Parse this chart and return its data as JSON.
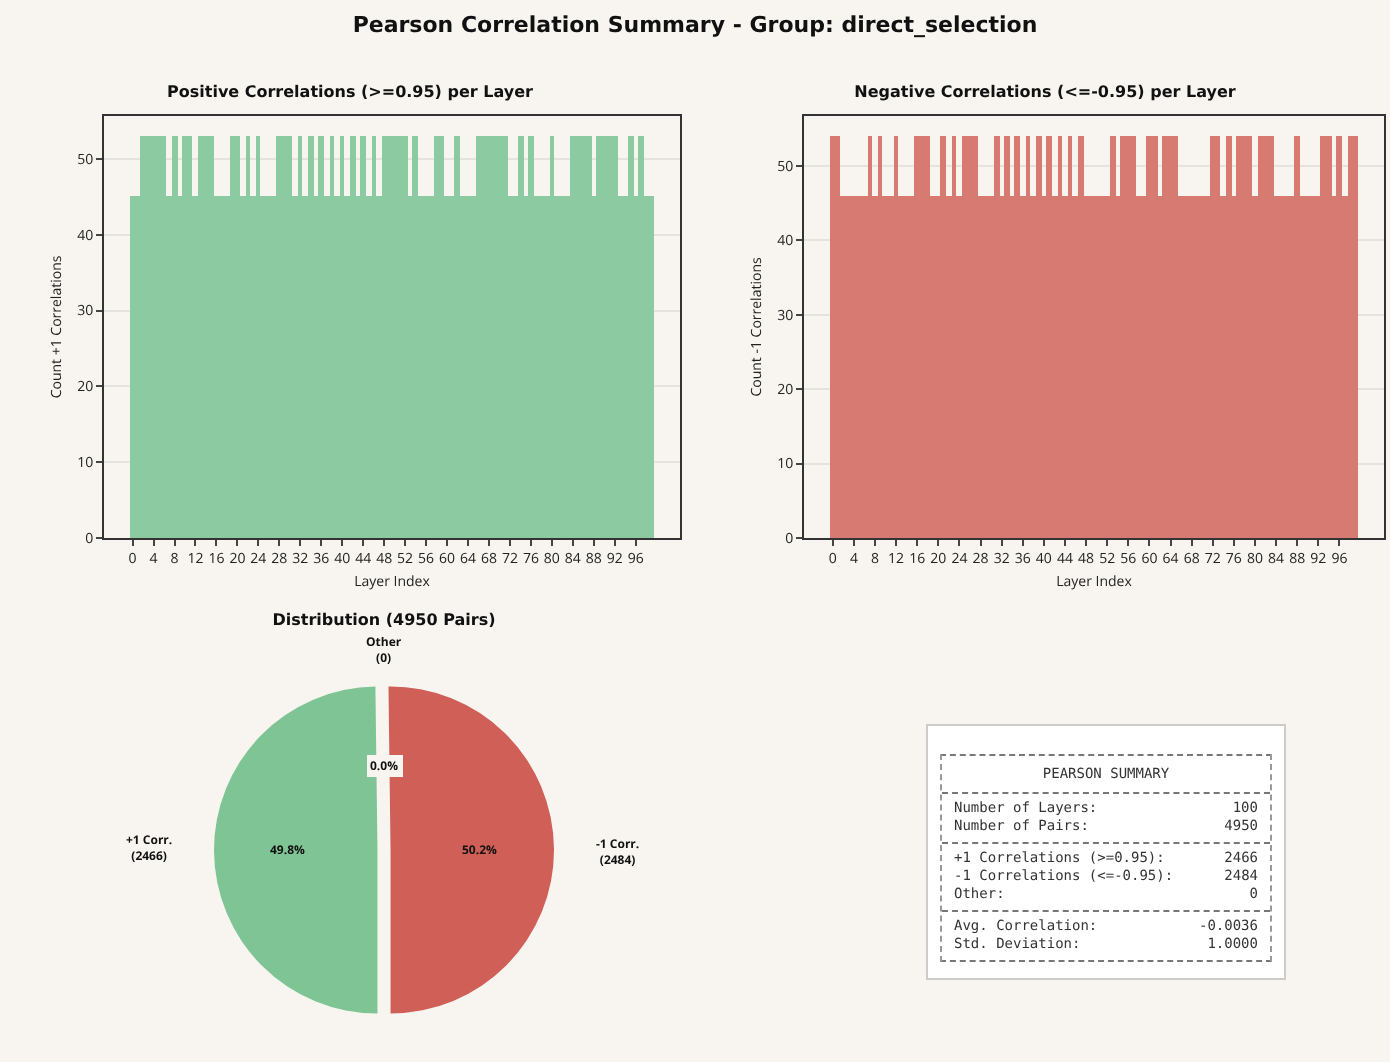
{
  "chart_data": [
    {
      "type": "other",
      "title": "Pearson Correlation Summary - Group: direct_selection"
    },
    {
      "type": "bar",
      "title": "Positive Correlations (>=0.95) per Layer",
      "xlabel": "Layer Index",
      "ylabel": "Count +1 Correlations",
      "x": [
        0,
        1,
        2,
        3,
        4,
        5,
        6,
        7,
        8,
        9,
        10,
        11,
        12,
        13,
        14,
        15,
        16,
        17,
        18,
        19,
        20,
        21,
        22,
        23,
        24,
        25,
        26,
        27,
        28,
        29,
        30,
        31,
        32,
        33,
        34,
        35,
        36,
        37,
        38,
        39,
        40,
        41,
        42,
        43,
        44,
        45,
        46,
        47,
        48,
        49,
        50,
        51,
        52,
        53,
        54,
        55,
        56,
        57,
        58,
        59,
        60,
        61,
        62,
        63,
        64,
        65,
        66,
        67,
        68,
        69,
        70,
        71,
        72,
        73,
        74,
        75,
        76,
        77,
        78,
        79,
        80,
        81,
        82,
        83,
        84,
        85,
        86,
        87,
        88,
        89,
        90,
        91,
        92,
        93,
        94,
        95,
        96,
        97,
        98,
        99
      ],
      "values": [
        45,
        45,
        53,
        53,
        53,
        53,
        53,
        45,
        53,
        45,
        53,
        53,
        45,
        53,
        53,
        53,
        45,
        45,
        45,
        53,
        53,
        45,
        53,
        45,
        53,
        45,
        45,
        45,
        53,
        53,
        53,
        45,
        53,
        45,
        53,
        45,
        53,
        45,
        53,
        45,
        53,
        45,
        53,
        45,
        53,
        45,
        53,
        45,
        53,
        53,
        53,
        53,
        53,
        45,
        53,
        45,
        45,
        45,
        53,
        53,
        45,
        45,
        53,
        45,
        45,
        45,
        53,
        53,
        53,
        53,
        53,
        53,
        45,
        45,
        53,
        45,
        53,
        45,
        45,
        45,
        53,
        45,
        45,
        45,
        53,
        53,
        53,
        53,
        45,
        53,
        53,
        53,
        53,
        45,
        45,
        53,
        45,
        53,
        45,
        45
      ],
      "color": "#8ccba1",
      "xlim": [
        -5.45,
        104.45
      ],
      "ylim": [
        0,
        55.65
      ],
      "xticks": [
        0,
        4,
        8,
        12,
        16,
        20,
        24,
        28,
        32,
        36,
        40,
        44,
        48,
        52,
        56,
        60,
        64,
        68,
        72,
        76,
        80,
        84,
        88,
        92,
        96
      ],
      "yticks": [
        0,
        10,
        20,
        30,
        40,
        50
      ],
      "grid": "y"
    },
    {
      "type": "bar",
      "title": "Negative Correlations (<=-0.95) per Layer",
      "xlabel": "Layer Index",
      "ylabel": "Count -1 Correlations",
      "x": [
        0,
        1,
        2,
        3,
        4,
        5,
        6,
        7,
        8,
        9,
        10,
        11,
        12,
        13,
        14,
        15,
        16,
        17,
        18,
        19,
        20,
        21,
        22,
        23,
        24,
        25,
        26,
        27,
        28,
        29,
        30,
        31,
        32,
        33,
        34,
        35,
        36,
        37,
        38,
        39,
        40,
        41,
        42,
        43,
        44,
        45,
        46,
        47,
        48,
        49,
        50,
        51,
        52,
        53,
        54,
        55,
        56,
        57,
        58,
        59,
        60,
        61,
        62,
        63,
        64,
        65,
        66,
        67,
        68,
        69,
        70,
        71,
        72,
        73,
        74,
        75,
        76,
        77,
        78,
        79,
        80,
        81,
        82,
        83,
        84,
        85,
        86,
        87,
        88,
        89,
        90,
        91,
        92,
        93,
        94,
        95,
        96,
        97,
        98,
        99
      ],
      "values": [
        54,
        54,
        46,
        46,
        46,
        46,
        46,
        54,
        46,
        54,
        46,
        46,
        54,
        46,
        46,
        46,
        54,
        54,
        54,
        46,
        46,
        54,
        46,
        54,
        46,
        54,
        54,
        54,
        46,
        46,
        46,
        54,
        46,
        54,
        46,
        54,
        46,
        54,
        46,
        54,
        46,
        54,
        46,
        54,
        46,
        54,
        46,
        54,
        46,
        46,
        46,
        46,
        46,
        54,
        46,
        54,
        54,
        54,
        46,
        46,
        54,
        54,
        46,
        54,
        54,
        54,
        46,
        46,
        46,
        46,
        46,
        46,
        54,
        54,
        46,
        54,
        46,
        54,
        54,
        54,
        46,
        54,
        54,
        54,
        46,
        46,
        46,
        46,
        54,
        46,
        46,
        46,
        46,
        54,
        54,
        46,
        54,
        46,
        54,
        54
      ],
      "color": "#d77a72",
      "xlim": [
        -5.45,
        104.45
      ],
      "ylim": [
        0,
        56.7
      ],
      "xticks": [
        0,
        4,
        8,
        12,
        16,
        20,
        24,
        28,
        32,
        36,
        40,
        44,
        48,
        52,
        56,
        60,
        64,
        68,
        72,
        76,
        80,
        84,
        88,
        92,
        96
      ],
      "yticks": [
        0,
        10,
        20,
        30,
        40,
        50
      ],
      "grid": "y"
    },
    {
      "type": "pie",
      "title": "Distribution (4950 Pairs)",
      "categories": [
        "+1 Corr.\n(2466)",
        "-1 Corr.\n(2484)",
        "Other\n(0)"
      ],
      "values": [
        49.8,
        50.2,
        0
      ],
      "colors": [
        "#7fc495",
        "#cf5f57",
        "#b0b0b0"
      ],
      "value_labels": [
        "49.8%",
        "50.2%",
        "0.0%"
      ]
    },
    {
      "type": "other",
      "title": "PEARSON SUMMARY",
      "annotations": [
        "Number of Layers:",
        "100",
        "Number of Pairs:",
        "4950",
        "+1 Correlations (>=0.95):",
        "2466",
        "-1 Correlations (<=-0.95):",
        "2484",
        "Other:",
        "0",
        "Avg. Correlation:",
        "-0.0036",
        "Std. Deviation:",
        "1.0000"
      ]
    }
  ]
}
